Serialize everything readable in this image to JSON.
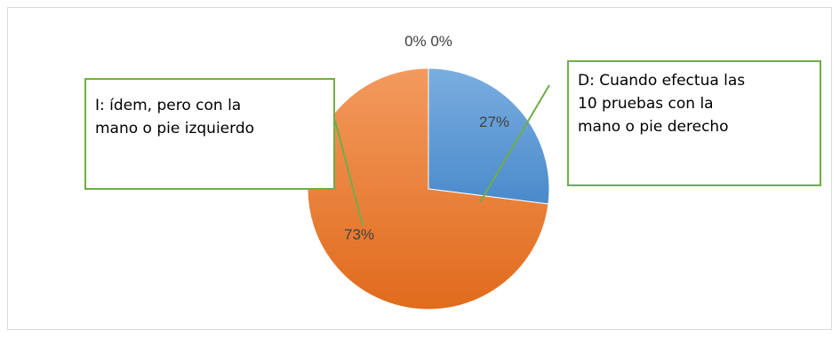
{
  "chart_data": {
    "type": "pie",
    "title": "",
    "slices": [
      {
        "label": "D",
        "value": 27,
        "display": "27%",
        "color": "#5b9bd5"
      },
      {
        "label": "I",
        "value": 73,
        "display": "73%",
        "color": "#ed7d31"
      },
      {
        "label": "",
        "value": 0,
        "display": "0%",
        "color": "#a5a5a5"
      },
      {
        "label": "",
        "value": 0,
        "display": "0%",
        "color": "#ffc000"
      }
    ],
    "zero_labels_text": "0% 0%",
    "legend": "none",
    "callouts": [
      {
        "id": "callout-i",
        "text": "I: ídem, pero con la\nmano o pie izquierdo",
        "slice": "I"
      },
      {
        "id": "callout-d",
        "text": "D: Cuando efectua las\n10 pruebas con la\nmano o pie derecho",
        "slice": "D"
      }
    ],
    "callout_border_color": "#70ad47",
    "label_color": "#404040"
  }
}
